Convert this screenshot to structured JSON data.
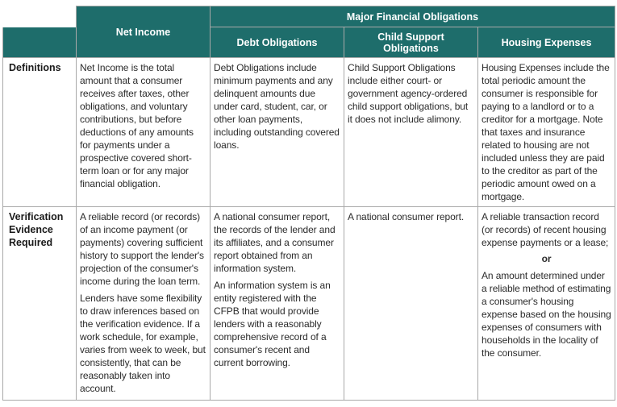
{
  "header": {
    "net_income": "Net Income",
    "major_obligations": "Major Financial Obligations",
    "debt_obligations": "Debt Obligations",
    "child_support_line1": "Child Support",
    "child_support_line2": "Obligations",
    "housing_expenses": "Housing Expenses"
  },
  "rows": {
    "definitions": {
      "label": "Definitions",
      "net_income": "Net Income is the total amount that a consumer receives after taxes, other obligations, and voluntary contributions, but before deductions of any amounts for payments under a prospective covered short-term loan or for any major financial obligation.",
      "debt": "Debt Obligations include minimum payments and any delinquent amounts due under card, student, car, or other loan payments, including outstanding covered loans.",
      "child_support": "Child Support Obligations include either court- or government agency-ordered child support obligations, but it does not include alimony.",
      "housing": "Housing Expenses include the total periodic amount the consumer is responsible for paying to a landlord or to a creditor for a mortgage. Note that taxes and insurance related to housing are not included unless they are paid to the creditor as part of the periodic amount owed on a mortgage."
    },
    "verification": {
      "label_line1": "Verification",
      "label_line2": "Evidence",
      "label_line3": "Required",
      "net_income_p1": "A reliable record (or records) of an income payment (or payments) covering sufficient history to support the lender's projection of the consumer's income during the loan term.",
      "net_income_p2": "Lenders have some flexibility to draw inferences based on the verification evidence. If a work schedule, for example, varies from week to week, but consistently, that can be reasonably taken into account.",
      "debt_p1": "A national consumer report, the records of the lender and its affiliates, and a consumer report obtained from an information system.",
      "debt_p2": "An information system is an entity registered with the CFPB that would provide lenders with a reasonably comprehensive record of a consumer's recent and current borrowing.",
      "child_support": "A national consumer report.",
      "housing_p1": "A reliable transaction record (or records) of recent housing expense payments or a lease;",
      "housing_or": "or",
      "housing_p2": "An amount determined under a reliable method of estimating a consumer's housing expense based on the housing expenses of consumers with households in the locality of the consumer."
    }
  }
}
